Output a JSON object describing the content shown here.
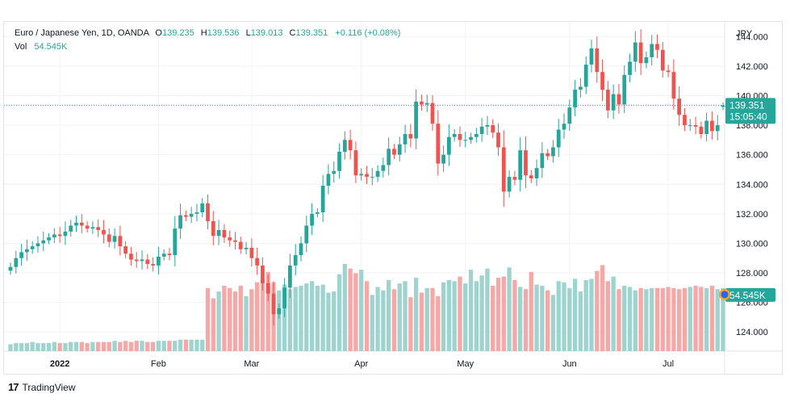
{
  "header": {
    "symbol": "Euro / Japanese Yen, 1D, OANDA",
    "open_label": "O",
    "open": "139.235",
    "high_label": "H",
    "high": "139.536",
    "low_label": "L",
    "low": "139.013",
    "close_label": "C",
    "close": "139.351",
    "change": "+0.116 (+0.08%)",
    "vol_label": "Vol",
    "vol": "54.545K"
  },
  "brand": {
    "logo_icon": "tradingview-logo-icon",
    "name": "TradingView"
  },
  "colors": {
    "up": "#26a69a",
    "down": "#ef5350",
    "up_vol": "#9ed4cf",
    "down_vol": "#f5a8a6",
    "grid": "#f0f3fa",
    "text": "#131722"
  },
  "chart_data": {
    "type": "candlestick",
    "currency": "JPY",
    "price_ticks": [
      "144.000",
      "142.000",
      "140.000",
      "138.000",
      "136.000",
      "134.000",
      "132.000",
      "130.000",
      "128.000",
      "126.000",
      "124.000"
    ],
    "ylim": [
      122.7,
      145.0
    ],
    "x_ticks": [
      "2022",
      "Feb",
      "Mar",
      "Apr",
      "May",
      "Jun",
      "Jul"
    ],
    "last_price": "139.351",
    "countdown": "15:05:40",
    "last_volume": "54.545K",
    "x_tick_index": [
      9,
      27,
      44,
      64,
      83,
      102,
      120
    ],
    "closes": [
      128.4,
      129.0,
      129.4,
      129.6,
      129.8,
      130.0,
      130.2,
      130.4,
      130.6,
      130.5,
      130.8,
      131.2,
      131.4,
      131.2,
      131.0,
      131.1,
      130.9,
      130.6,
      130.1,
      130.5,
      129.8,
      129.3,
      128.9,
      128.8,
      128.9,
      128.6,
      128.5,
      129.1,
      129.3,
      129.2,
      131.0,
      131.9,
      131.8,
      132.0,
      132.1,
      132.7,
      131.5,
      130.5,
      130.9,
      130.4,
      130.2,
      130.1,
      129.6,
      129.7,
      129.0,
      128.5,
      127.3,
      126.6,
      125.2,
      125.6,
      127.0,
      128.5,
      129.2,
      130.0,
      131.2,
      132.0,
      132.1,
      133.9,
      134.7,
      134.9,
      136.2,
      137.0,
      136.3,
      134.6,
      134.7,
      134.5,
      134.5,
      134.9,
      135.3,
      136.4,
      136.0,
      136.7,
      137.4,
      137.1,
      139.6,
      139.4,
      139.5,
      138.1,
      135.4,
      136.0,
      137.2,
      137.4,
      137.0,
      137.0,
      137.2,
      137.4,
      137.9,
      138.0,
      137.5,
      136.5,
      133.5,
      134.5,
      134.3,
      136.3,
      134.6,
      134.4,
      135.1,
      136.1,
      135.9,
      136.5,
      137.7,
      138.1,
      139.2,
      140.4,
      140.6,
      142.1,
      143.2,
      141.6,
      140.4,
      139.0,
      140.1,
      139.4,
      141.4,
      142.3,
      143.6,
      142.2,
      142.6,
      143.5,
      143.1,
      141.7,
      141.6,
      139.8,
      138.7,
      138.0,
      138.0,
      137.9,
      137.4,
      138.3,
      137.6,
      138.0,
      139.35
    ],
    "volume_ticks": [
      "",
      "",
      ""
    ],
    "volumes_k": [
      6,
      7,
      7,
      7,
      8,
      7,
      7,
      7,
      8,
      7,
      7,
      8,
      8,
      8,
      7,
      8,
      8,
      8,
      8,
      9,
      8,
      9,
      8,
      9,
      9,
      8,
      8,
      9,
      9,
      9,
      9,
      10,
      10,
      10,
      10,
      10,
      55,
      46,
      52,
      57,
      55,
      52,
      57,
      48,
      54,
      60,
      63,
      69,
      60,
      53,
      58,
      54,
      56,
      57,
      59,
      61,
      57,
      58,
      51,
      52,
      67,
      76,
      72,
      68,
      71,
      61,
      49,
      56,
      53,
      62,
      54,
      59,
      61,
      47,
      64,
      51,
      55,
      55,
      48,
      60,
      62,
      61,
      65,
      59,
      71,
      61,
      66,
      72,
      57,
      64,
      65,
      73,
      62,
      56,
      54,
      69,
      58,
      57,
      53,
      49,
      61,
      60,
      55,
      63,
      52,
      62,
      63,
      70,
      75,
      61,
      65,
      54,
      57,
      56,
      53,
      55,
      54,
      55,
      55,
      55,
      56,
      55,
      54,
      55,
      56,
      57,
      56,
      55,
      57,
      54,
      55,
      54.5
    ]
  }
}
